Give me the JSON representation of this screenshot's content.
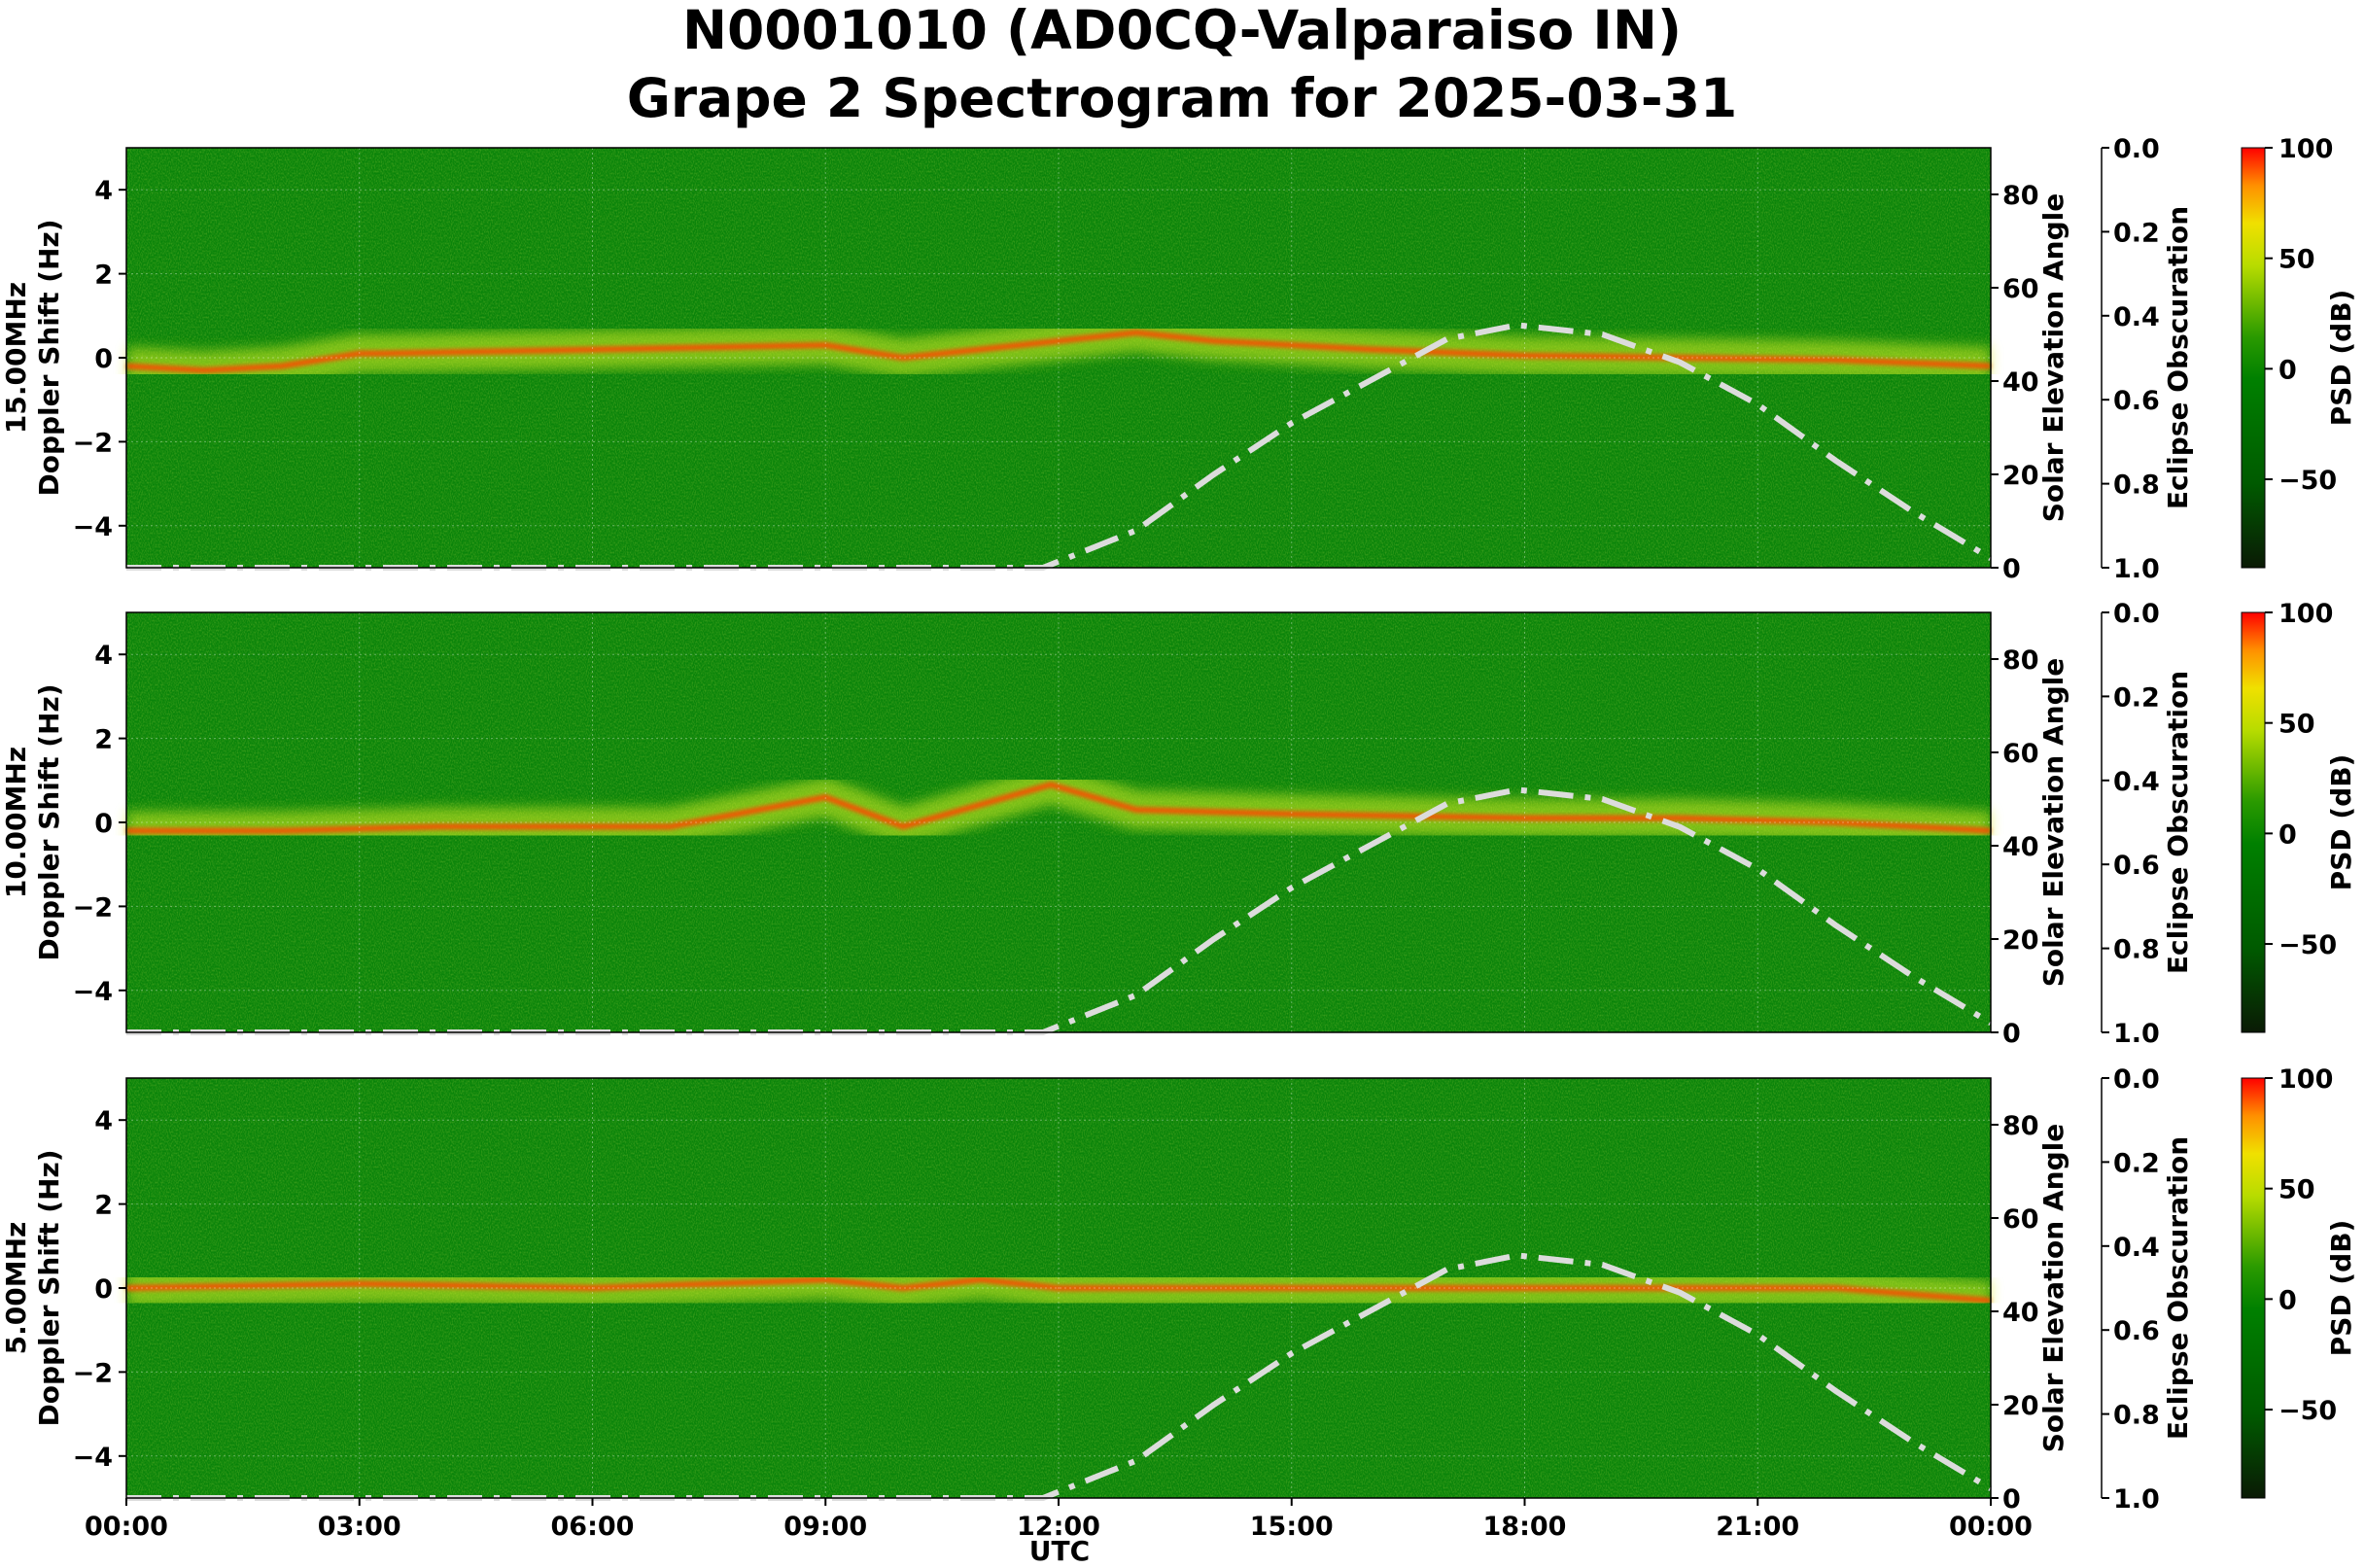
{
  "chart_data": {
    "type": "heatmap",
    "title_line1": "N0001010 (AD0CQ-Valparaiso IN)",
    "title_line2": "Grape 2 Spectrogram for 2025-03-31",
    "xlabel": "UTC",
    "x_ticks": [
      "00:00",
      "03:00",
      "06:00",
      "09:00",
      "12:00",
      "15:00",
      "18:00",
      "21:00",
      "00:00"
    ],
    "x_range_hours": [
      0,
      24
    ],
    "grid": true,
    "y_range_hz": [
      -5,
      5
    ],
    "y_ticks": [
      4,
      2,
      0,
      -2,
      -4
    ],
    "elev_label": "Solar Elevation Angle",
    "elev_ticks": [
      0,
      20,
      40,
      60,
      80
    ],
    "elev_range": [
      0,
      90
    ],
    "eclipse_label": "Eclipse Obscuration",
    "eclipse_ticks": [
      "0.0",
      "0.2",
      "0.4",
      "0.6",
      "0.8",
      "1.0"
    ],
    "colorbar_label": "PSD (dB)",
    "colorbar_ticks": [
      100,
      50,
      0,
      -50
    ],
    "colorbar_range": [
      -90,
      100
    ],
    "colors": {
      "low": "#0a1a05",
      "mid": "#007f00",
      "mid_high": "#c8e000",
      "high": "#ff0000",
      "elevation_curve": "#dcdcdc"
    },
    "solar_elevation": {
      "utc_hours": [
        0,
        11.8,
        13,
        14,
        15,
        16,
        17,
        17.9,
        19,
        20,
        21,
        22,
        23,
        24
      ],
      "degrees": [
        0,
        0,
        8,
        20,
        31,
        40,
        49,
        52,
        50,
        44,
        35,
        23,
        12,
        2
      ]
    },
    "panels": [
      {
        "ylabel_line1": "15.00MHz",
        "ylabel_line2": "Doppler Shift (Hz)",
        "dominant_signal_doppler_hz": {
          "utc_hours": [
            0,
            1,
            2,
            3,
            3.3,
            9,
            10,
            13,
            14,
            16,
            18,
            20,
            22,
            24
          ],
          "values": [
            -0.2,
            -0.3,
            -0.2,
            0.1,
            0.1,
            0.3,
            0,
            0.6,
            0.4,
            0.2,
            0.05,
            0.0,
            -0.05,
            -0.2
          ]
        }
      },
      {
        "ylabel_line1": "10.00MHz",
        "ylabel_line2": "Doppler Shift (Hz)",
        "dominant_signal_doppler_hz": {
          "utc_hours": [
            0,
            2,
            4,
            6,
            7,
            9,
            10,
            11.9,
            13,
            15,
            18,
            20,
            22,
            24
          ],
          "values": [
            -0.2,
            -0.2,
            -0.1,
            -0.1,
            -0.1,
            0.6,
            -0.1,
            0.9,
            0.3,
            0.2,
            0.1,
            0.1,
            0.0,
            -0.2
          ]
        }
      },
      {
        "ylabel_line1": "5.00MHz",
        "ylabel_line2": "Doppler Shift (Hz)",
        "dominant_signal_doppler_hz": {
          "utc_hours": [
            0,
            3,
            6,
            9,
            10,
            11,
            12,
            14,
            18,
            22,
            24
          ],
          "values": [
            0.0,
            0.1,
            0.0,
            0.2,
            0.0,
            0.2,
            0.0,
            0.0,
            0.0,
            0.0,
            -0.3
          ]
        }
      }
    ]
  }
}
